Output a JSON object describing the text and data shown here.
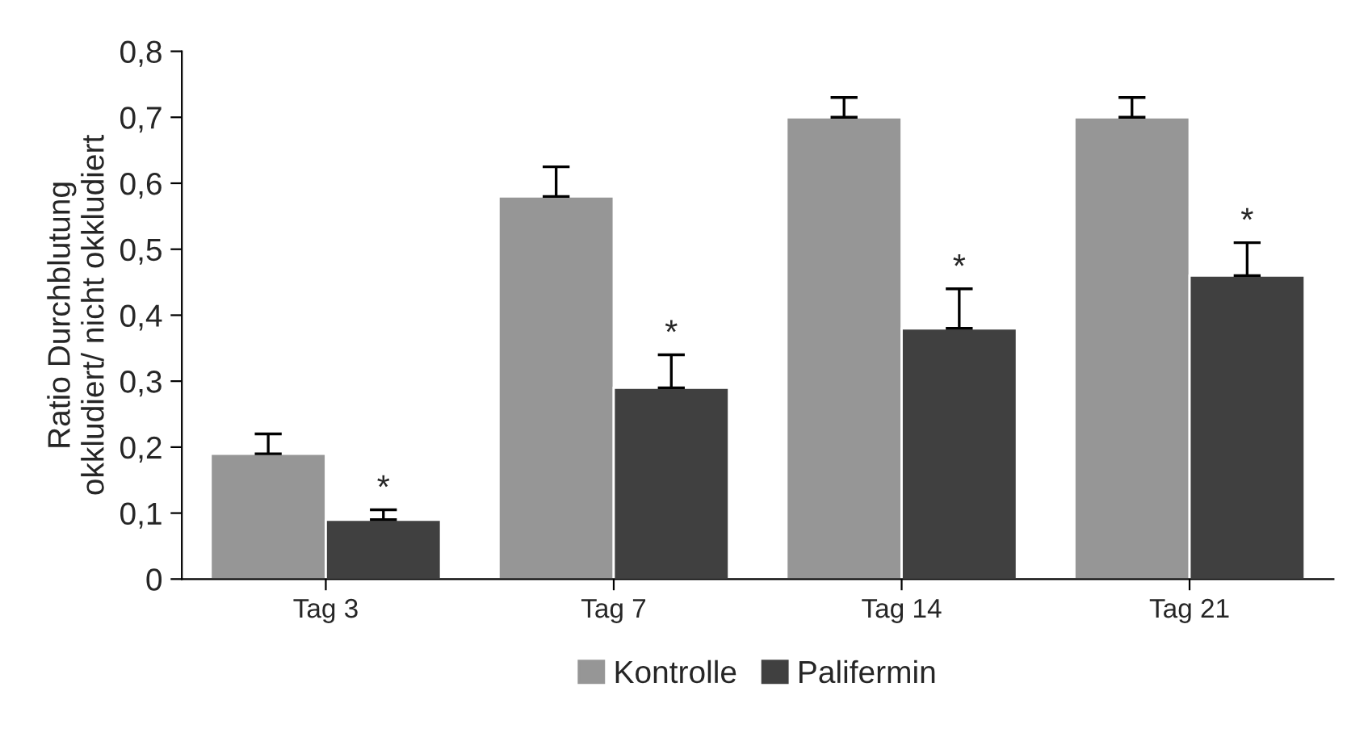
{
  "chart_data": {
    "type": "bar",
    "ylabel": "Ratio Durchblutung\nokkludiert/ nicht okkludiert",
    "categories": [
      "Tag 3",
      "Tag 7",
      "Tag 14",
      "Tag 21"
    ],
    "series": [
      {
        "name": "Kontrolle",
        "color": "#969696",
        "values": [
          0.19,
          0.58,
          0.7,
          0.7
        ],
        "errors": [
          [
            0.19,
            0.22
          ],
          [
            0.58,
            0.625
          ],
          [
            0.7,
            0.73
          ],
          [
            0.7,
            0.73
          ]
        ]
      },
      {
        "name": "Palifermin",
        "color": "#404040",
        "values": [
          0.09,
          0.29,
          0.38,
          0.46
        ],
        "errors": [
          [
            0.09,
            0.105
          ],
          [
            0.29,
            0.34
          ],
          [
            0.38,
            0.44
          ],
          [
            0.46,
            0.51
          ]
        ]
      }
    ],
    "ylim": [
      0,
      0.8
    ],
    "yticks": [
      {
        "value": 0,
        "label": "0"
      },
      {
        "value": 0.1,
        "label": "0,1"
      },
      {
        "value": 0.2,
        "label": "0,2"
      },
      {
        "value": 0.3,
        "label": "0,3"
      },
      {
        "value": 0.4,
        "label": "0,4"
      },
      {
        "value": 0.5,
        "label": "0,5"
      },
      {
        "value": 0.6,
        "label": "0,6"
      },
      {
        "value": 0.7,
        "label": "0,7"
      },
      {
        "value": 0.8,
        "label": "0,8"
      }
    ],
    "annotations": [
      {
        "text": "*",
        "x": "Tag 3",
        "y": 0.105
      },
      {
        "text": "*",
        "x": "Tag 7",
        "y": 0.34
      },
      {
        "text": "*",
        "x": "Tag 14",
        "y": 0.44
      },
      {
        "text": "*",
        "x": "Tag 21",
        "y": 0.51
      }
    ],
    "grid": false,
    "legend": "bottom"
  }
}
